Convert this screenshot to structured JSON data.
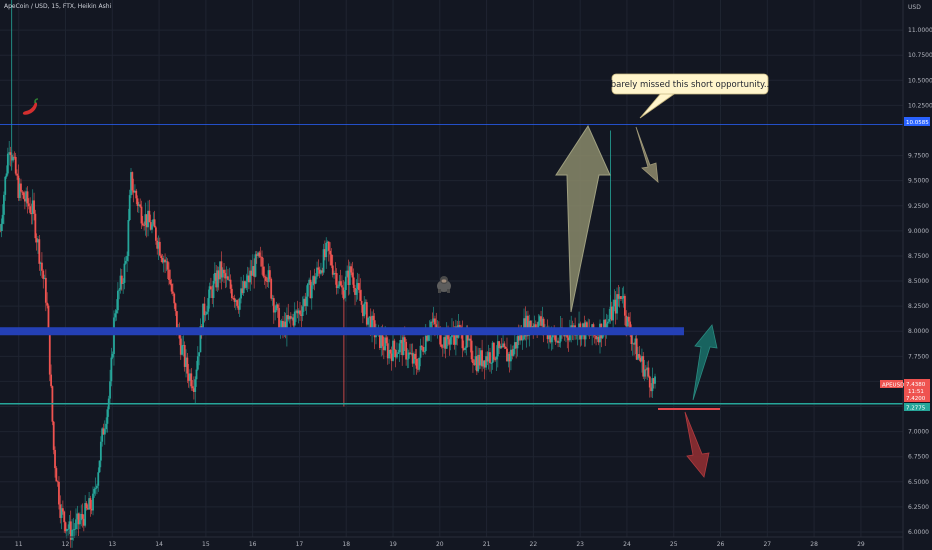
{
  "header": {
    "title": "ApeCoin / USD, 15, FTX, Heikin Ashi"
  },
  "price_scale": {
    "currency": "USD",
    "marked_level": "10.0585",
    "current_symbol": "APEUSD",
    "current_price": "7.4380",
    "countdown": "11:51",
    "tag_low": "7.4200",
    "tag_support": "7.2775"
  },
  "annotation": {
    "callout": "barely missed this short opportunity.."
  },
  "colors": {
    "background": "#131722",
    "grid": "#1f2431",
    "up_candle": "#26a69a",
    "down_candle": "#ef5350",
    "resistance_zone": "#2440b5",
    "support_line": "#26a69a",
    "top_line": "#2962ff",
    "big_up_arrow": "#8a8a6a",
    "short_arrow": "#8a8468",
    "teal_arrow": "#1a6b66",
    "red_arrow": "#8e2e32",
    "red_line": "#e5484d",
    "callout_fill": "#fff5cc"
  },
  "icons": [
    "chili-pepper-icon",
    "gorilla-icon"
  ],
  "chart_data": {
    "type": "candlestick",
    "style": "Heikin Ashi",
    "symbol": "ApeCoin / USD",
    "interval": "15",
    "exchange": "FTX",
    "ylim": [
      5.95,
      11.3
    ],
    "xlim": [
      10.6,
      29.9
    ],
    "y_ticks": [
      "6.0000",
      "6.2500",
      "6.5000",
      "6.7500",
      "7.0000",
      "7.2500",
      "7.5000",
      "7.7500",
      "8.0000",
      "8.2500",
      "8.5000",
      "8.7500",
      "9.0000",
      "9.2500",
      "9.5000",
      "9.7500",
      "10.2500",
      "10.5000",
      "10.7500",
      "11.0000"
    ],
    "y_tick_values": [
      6.0,
      6.25,
      6.5,
      6.75,
      7.0,
      7.25,
      7.5,
      7.75,
      8.0,
      8.25,
      8.5,
      8.75,
      9.0,
      9.25,
      9.5,
      9.75,
      10.25,
      10.5,
      10.75,
      11.0
    ],
    "x_ticks": [
      "11",
      "12",
      "13",
      "14",
      "15",
      "16",
      "17",
      "18",
      "19",
      "20",
      "21",
      "22",
      "23",
      "24",
      "25",
      "26",
      "27",
      "28",
      "29"
    ],
    "x_tick_values": [
      11,
      12,
      13,
      14,
      15,
      16,
      17,
      18,
      19,
      20,
      21,
      22,
      23,
      24,
      25,
      26,
      27,
      28,
      29
    ],
    "grid": true,
    "price_path": [
      [
        10.6,
        9.0
      ],
      [
        10.8,
        9.9
      ],
      [
        11.0,
        9.4
      ],
      [
        11.3,
        9.2
      ],
      [
        11.5,
        8.6
      ],
      [
        11.6,
        8.3
      ],
      [
        11.75,
        6.8
      ],
      [
        11.9,
        6.2
      ],
      [
        12.1,
        6.0
      ],
      [
        12.3,
        6.1
      ],
      [
        12.6,
        6.3
      ],
      [
        12.8,
        7.0
      ],
      [
        12.95,
        7.4
      ],
      [
        13.05,
        8.2
      ],
      [
        13.3,
        8.7
      ],
      [
        13.4,
        9.5
      ],
      [
        13.6,
        9.2
      ],
      [
        13.9,
        9.0
      ],
      [
        14.2,
        8.6
      ],
      [
        14.4,
        8.0
      ],
      [
        14.6,
        7.6
      ],
      [
        14.75,
        7.5
      ],
      [
        14.95,
        8.2
      ],
      [
        15.3,
        8.6
      ],
      [
        15.7,
        8.3
      ],
      [
        16.1,
        8.7
      ],
      [
        16.3,
        8.6
      ],
      [
        16.6,
        8.0
      ],
      [
        17.0,
        8.2
      ],
      [
        17.3,
        8.5
      ],
      [
        17.6,
        8.8
      ],
      [
        17.9,
        8.4
      ],
      [
        18.1,
        8.6
      ],
      [
        18.3,
        8.3
      ],
      [
        18.6,
        8.0
      ],
      [
        18.9,
        7.8
      ],
      [
        19.2,
        7.85
      ],
      [
        19.5,
        7.65
      ],
      [
        19.8,
        8.1
      ],
      [
        20.1,
        7.9
      ],
      [
        20.4,
        8.0
      ],
      [
        20.8,
        7.7
      ],
      [
        21.2,
        7.8
      ],
      [
        21.5,
        7.75
      ],
      [
        21.8,
        8.05
      ],
      [
        22.1,
        8.1
      ],
      [
        22.5,
        7.9
      ],
      [
        22.9,
        8.05
      ],
      [
        23.3,
        7.95
      ],
      [
        23.6,
        8.1
      ],
      [
        23.9,
        8.4
      ],
      [
        24.0,
        8.1
      ],
      [
        24.2,
        7.8
      ],
      [
        24.4,
        7.6
      ],
      [
        24.6,
        7.44
      ]
    ],
    "levels": [
      {
        "name": "top-line",
        "value": 10.0585
      },
      {
        "name": "resistance-zone",
        "from": 7.96,
        "to": 8.04
      },
      {
        "name": "support-line",
        "value": 7.2775
      }
    ],
    "annotations": [
      "barely missed this short opportunity.."
    ]
  }
}
